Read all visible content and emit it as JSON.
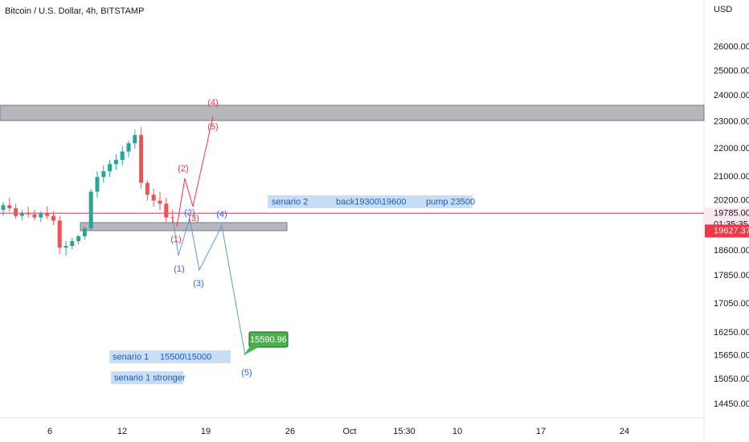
{
  "header": {
    "title": "Bitcoin / U.S. Dollar, 4h, BITSTAMP"
  },
  "chart_data": {
    "type": "candlestick",
    "open": [
      19900,
      20050,
      19950,
      19700,
      19800,
      19750,
      19650,
      19780,
      19700,
      19550,
      18700,
      18750,
      18900,
      19050,
      19300,
      20500,
      21000,
      21200,
      21450,
      21600,
      21900,
      22200,
      22500,
      20800,
      20400,
      20200,
      20100,
      19650
    ],
    "high": [
      20150,
      20300,
      20100,
      19900,
      20000,
      19900,
      19850,
      20000,
      19850,
      19700,
      18900,
      19000,
      19100,
      19350,
      20600,
      21200,
      21400,
      21600,
      21800,
      22100,
      22300,
      22700,
      22800,
      20900,
      20600,
      20500,
      20300,
      19900
    ],
    "low": [
      19700,
      19850,
      19600,
      19550,
      19650,
      19550,
      19500,
      19600,
      19400,
      18500,
      18450,
      18650,
      18800,
      18950,
      19250,
      20300,
      20800,
      21000,
      21250,
      21400,
      21700,
      22000,
      20600,
      20200,
      20000,
      19900,
      19500,
      19450
    ],
    "close": [
      20050,
      19950,
      19700,
      19800,
      19750,
      19650,
      19780,
      19700,
      19550,
      18700,
      18750,
      18900,
      19050,
      19300,
      20500,
      21000,
      21200,
      21450,
      21600,
      21900,
      22200,
      22500,
      20800,
      20400,
      20200,
      20100,
      19650,
      19627.37
    ],
    "up_color": "#26a69a",
    "down_color": "#ef5350",
    "log_scale": true,
    "grid": false,
    "y_axis_unit": "USD",
    "ylim": [
      14130,
      28100
    ],
    "yticks": [
      {
        "value": 26000,
        "label": "26000.00"
      },
      {
        "value": 25000,
        "label": "25000.00"
      },
      {
        "value": 24000,
        "label": "24000.00"
      },
      {
        "value": 23000,
        "label": "23000.00"
      },
      {
        "value": 22000,
        "label": "22000.00"
      },
      {
        "value": 21000,
        "label": "21000.00"
      },
      {
        "value": 20200,
        "label": "20200.00"
      },
      {
        "value": 18600,
        "label": "18600.00"
      },
      {
        "value": 17850,
        "label": "17850.00"
      },
      {
        "value": 17050,
        "label": "17050.00"
      },
      {
        "value": 16250,
        "label": "16250.00"
      },
      {
        "value": 15650,
        "label": "15650.00"
      },
      {
        "value": 15050,
        "label": "15050.00"
      },
      {
        "value": 14450,
        "label": "14450.00"
      }
    ],
    "x_labels": [
      "6",
      "12",
      "19",
      "26",
      "Oct",
      "15:30",
      "10",
      "17",
      "24"
    ],
    "horizontal_line": {
      "value": 19785,
      "label": "19785.00",
      "color": "#f06292"
    },
    "countdown": "01:35:35",
    "last_price": 19627.37,
    "target_label": "15590.96",
    "red_wave_labels": [
      "(1)",
      "(2)",
      "(3)",
      "(4)",
      "(5)"
    ],
    "blue_wave_labels": [
      "(1)",
      "(2)",
      "(3)",
      "(4)",
      "(5)"
    ],
    "notes": [
      [
        "senario 2",
        "back19300\\19600",
        "pump 23500"
      ],
      [
        "senario 1",
        "15500\\15000"
      ],
      [
        "senario 1 stronger"
      ]
    ]
  }
}
